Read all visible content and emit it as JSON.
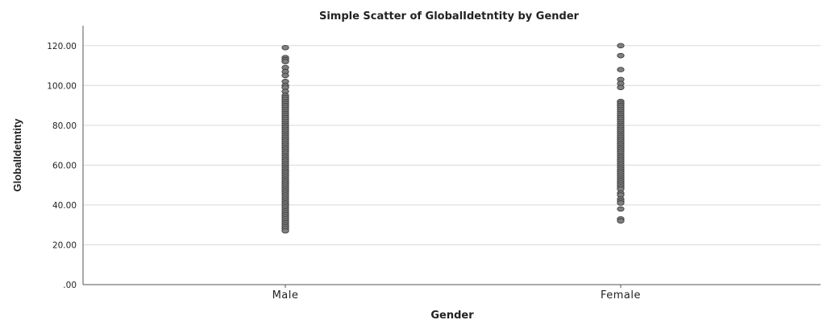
{
  "chart_data": {
    "type": "scatter",
    "title": "Simple Scatter of GlobalIdetntity by Gender",
    "xlabel": "Gender",
    "ylabel": "GlobalIdetntity",
    "categories": [
      "Male",
      "Female"
    ],
    "ylim": [
      0,
      130
    ],
    "yticks": [
      0,
      20,
      40,
      60,
      80,
      100,
      120
    ],
    "ytick_labels": [
      ".00",
      "20.00",
      "40.00",
      "60.00",
      "80.00",
      "100.00",
      "120.00"
    ],
    "grid": true,
    "legend": "none",
    "point_color": "#7f7f7f",
    "series": [
      {
        "category": "Male",
        "values": [
          119,
          114,
          113,
          112,
          109,
          107,
          105,
          102,
          100,
          99,
          97,
          95,
          94,
          93,
          92,
          91,
          90,
          89,
          88,
          87,
          86,
          85,
          84,
          83,
          82,
          81,
          80,
          79,
          78,
          77,
          76,
          75,
          74,
          73,
          72,
          71,
          70,
          69,
          68,
          67,
          66,
          65,
          64,
          63,
          62,
          61,
          60,
          59,
          58,
          57,
          56,
          55,
          54,
          53,
          52,
          51,
          50,
          49,
          48,
          47,
          46,
          45,
          44,
          43,
          42,
          41,
          40,
          39,
          38,
          37,
          36,
          35,
          34,
          33,
          32,
          31,
          30,
          29,
          28,
          27
        ]
      },
      {
        "category": "Female",
        "values": [
          120,
          115,
          108,
          103,
          101,
          99,
          92,
          91,
          90,
          89,
          88,
          87,
          86,
          85,
          84,
          83,
          82,
          81,
          80,
          79,
          78,
          77,
          76,
          75,
          74,
          73,
          72,
          71,
          70,
          69,
          68,
          67,
          66,
          65,
          64,
          63,
          62,
          61,
          60,
          59,
          58,
          57,
          56,
          55,
          54,
          53,
          52,
          51,
          50,
          49,
          48,
          46,
          45,
          43,
          42,
          41,
          38,
          33,
          32
        ]
      }
    ]
  }
}
